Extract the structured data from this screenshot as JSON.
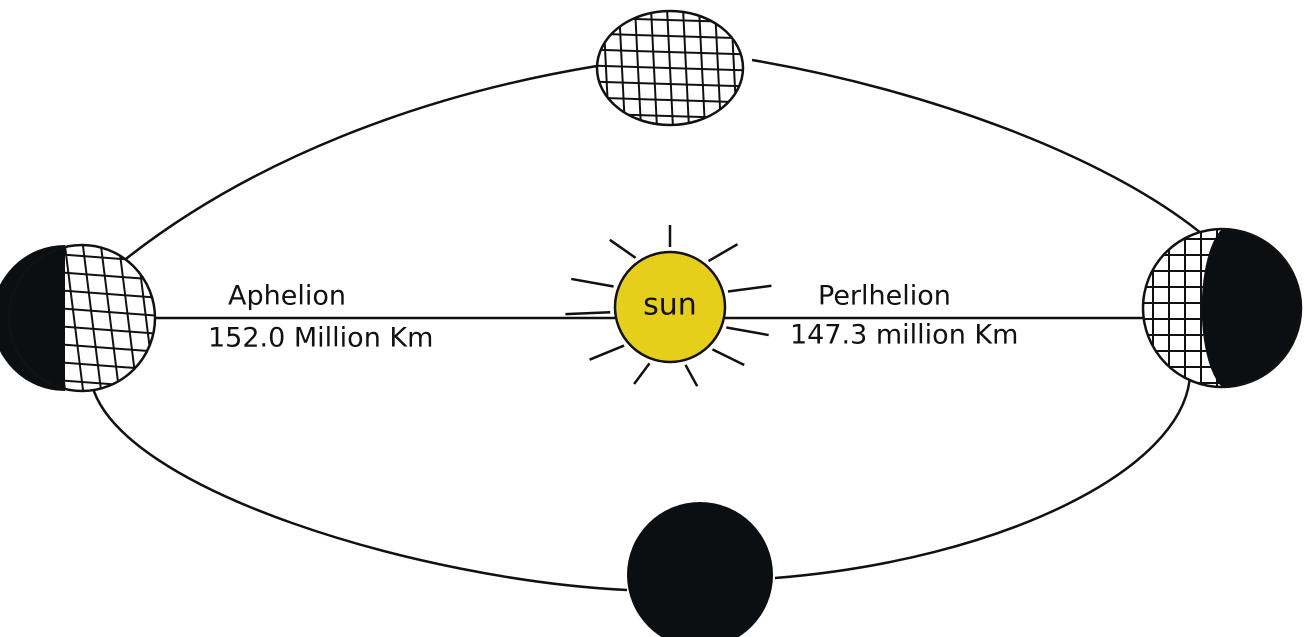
{
  "sun": {
    "label": "sun"
  },
  "aphelion": {
    "label": "Aphelion",
    "distance": "152.0 Million Km"
  },
  "perihelion": {
    "label": "Perlhelion",
    "distance": "147.3 million Km"
  }
}
